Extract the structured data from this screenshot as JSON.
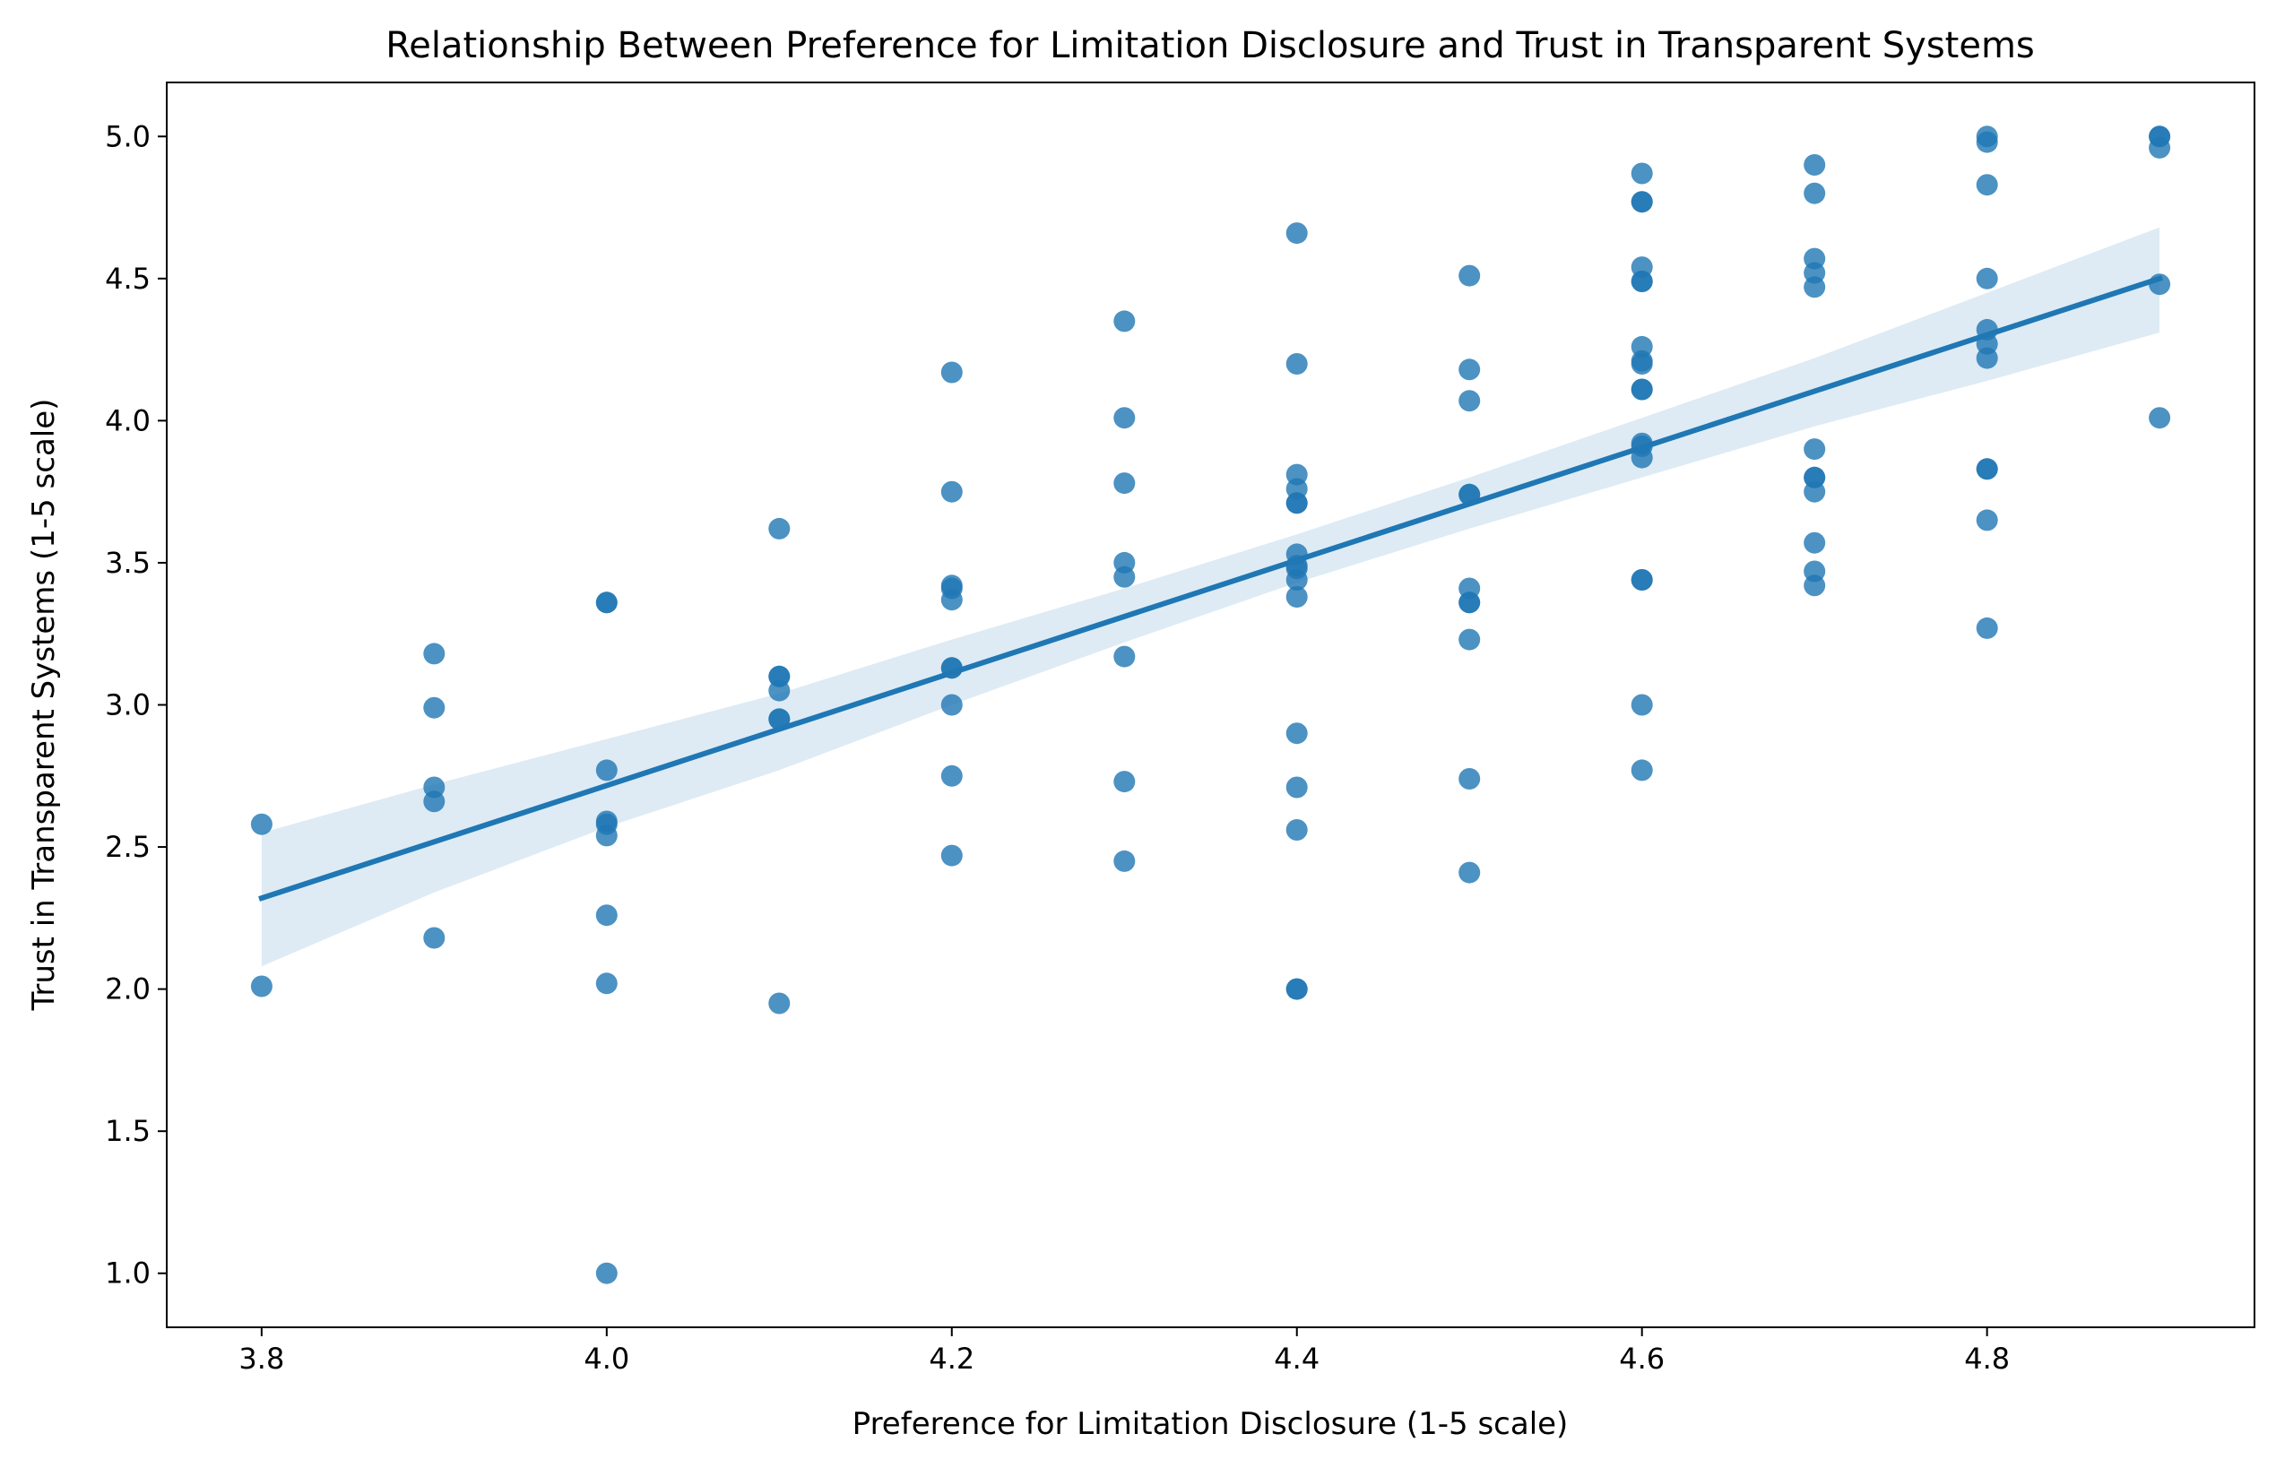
{
  "chart_data": {
    "type": "scatter",
    "title": "Relationship Between Preference for Limitation Disclosure and Trust in Transparent Systems",
    "xlabel": "Preference for Limitation Disclosure (1-5 scale)",
    "ylabel": "Trust in Transparent Systems (1-5 scale)",
    "xlim": [
      3.745,
      4.955
    ],
    "ylim": [
      0.81,
      5.19
    ],
    "x_ticks": [
      "3.8",
      "4.0",
      "4.2",
      "4.4",
      "4.6",
      "4.8"
    ],
    "y_ticks": [
      "1.0",
      "1.5",
      "2.0",
      "2.5",
      "3.0",
      "3.5",
      "4.0",
      "4.5",
      "5.0"
    ],
    "grid": false,
    "point_color": "#1f77b4",
    "points": [
      [
        3.8,
        2.58
      ],
      [
        3.8,
        2.01
      ],
      [
        3.9,
        3.18
      ],
      [
        3.9,
        2.99
      ],
      [
        3.9,
        2.71
      ],
      [
        3.9,
        2.66
      ],
      [
        3.9,
        2.18
      ],
      [
        4.0,
        3.36
      ],
      [
        4.0,
        3.36
      ],
      [
        4.0,
        2.77
      ],
      [
        4.0,
        2.59
      ],
      [
        4.0,
        2.58
      ],
      [
        4.0,
        2.54
      ],
      [
        4.0,
        2.26
      ],
      [
        4.0,
        2.02
      ],
      [
        4.0,
        1.0
      ],
      [
        4.1,
        3.62
      ],
      [
        4.1,
        3.1
      ],
      [
        4.1,
        3.1
      ],
      [
        4.1,
        3.05
      ],
      [
        4.1,
        2.95
      ],
      [
        4.1,
        2.95
      ],
      [
        4.1,
        1.95
      ],
      [
        4.2,
        4.17
      ],
      [
        4.2,
        3.75
      ],
      [
        4.2,
        3.42
      ],
      [
        4.2,
        3.41
      ],
      [
        4.2,
        3.37
      ],
      [
        4.2,
        3.13
      ],
      [
        4.2,
        3.13
      ],
      [
        4.2,
        3.0
      ],
      [
        4.2,
        2.75
      ],
      [
        4.2,
        2.47
      ],
      [
        4.3,
        4.35
      ],
      [
        4.3,
        4.01
      ],
      [
        4.3,
        3.78
      ],
      [
        4.3,
        3.5
      ],
      [
        4.3,
        3.45
      ],
      [
        4.3,
        3.17
      ],
      [
        4.3,
        2.73
      ],
      [
        4.3,
        2.45
      ],
      [
        4.4,
        4.66
      ],
      [
        4.4,
        4.2
      ],
      [
        4.4,
        3.81
      ],
      [
        4.4,
        3.76
      ],
      [
        4.4,
        3.71
      ],
      [
        4.4,
        3.71
      ],
      [
        4.4,
        3.53
      ],
      [
        4.4,
        3.49
      ],
      [
        4.4,
        3.48
      ],
      [
        4.4,
        3.44
      ],
      [
        4.4,
        3.38
      ],
      [
        4.4,
        2.9
      ],
      [
        4.4,
        2.71
      ],
      [
        4.4,
        2.56
      ],
      [
        4.4,
        2.0
      ],
      [
        4.4,
        2.0
      ],
      [
        4.5,
        4.51
      ],
      [
        4.5,
        4.18
      ],
      [
        4.5,
        4.07
      ],
      [
        4.5,
        3.74
      ],
      [
        4.5,
        3.74
      ],
      [
        4.5,
        3.41
      ],
      [
        4.5,
        3.36
      ],
      [
        4.5,
        3.36
      ],
      [
        4.5,
        3.23
      ],
      [
        4.5,
        2.74
      ],
      [
        4.5,
        2.41
      ],
      [
        4.6,
        4.87
      ],
      [
        4.6,
        4.77
      ],
      [
        4.6,
        4.77
      ],
      [
        4.6,
        4.54
      ],
      [
        4.6,
        4.49
      ],
      [
        4.6,
        4.49
      ],
      [
        4.6,
        4.26
      ],
      [
        4.6,
        4.21
      ],
      [
        4.6,
        4.2
      ],
      [
        4.6,
        4.11
      ],
      [
        4.6,
        4.11
      ],
      [
        4.6,
        3.92
      ],
      [
        4.6,
        3.91
      ],
      [
        4.6,
        3.87
      ],
      [
        4.6,
        3.44
      ],
      [
        4.6,
        3.44
      ],
      [
        4.6,
        3.0
      ],
      [
        4.6,
        2.77
      ],
      [
        4.7,
        4.9
      ],
      [
        4.7,
        4.8
      ],
      [
        4.7,
        4.57
      ],
      [
        4.7,
        4.52
      ],
      [
        4.7,
        4.47
      ],
      [
        4.7,
        3.9
      ],
      [
        4.7,
        3.8
      ],
      [
        4.7,
        3.8
      ],
      [
        4.7,
        3.75
      ],
      [
        4.7,
        3.57
      ],
      [
        4.7,
        3.47
      ],
      [
        4.7,
        3.42
      ],
      [
        4.8,
        5.0
      ],
      [
        4.8,
        4.98
      ],
      [
        4.8,
        4.83
      ],
      [
        4.8,
        4.5
      ],
      [
        4.8,
        4.32
      ],
      [
        4.8,
        4.27
      ],
      [
        4.8,
        4.22
      ],
      [
        4.8,
        3.83
      ],
      [
        4.8,
        3.83
      ],
      [
        4.8,
        3.65
      ],
      [
        4.8,
        3.27
      ],
      [
        4.9,
        5.0
      ],
      [
        4.9,
        5.0
      ],
      [
        4.9,
        4.96
      ],
      [
        4.9,
        4.48
      ],
      [
        4.9,
        4.01
      ]
    ],
    "regression": {
      "x": [
        3.8,
        4.9
      ],
      "y": [
        2.32,
        4.5
      ],
      "ci_x": [
        3.8,
        3.9,
        4.0,
        4.1,
        4.2,
        4.3,
        4.4,
        4.5,
        4.6,
        4.7,
        4.8,
        4.9
      ],
      "ci_lower": [
        2.08,
        2.34,
        2.57,
        2.77,
        3.0,
        3.22,
        3.43,
        3.62,
        3.8,
        3.98,
        4.14,
        4.31
      ],
      "ci_upper": [
        2.55,
        2.72,
        2.88,
        3.04,
        3.23,
        3.41,
        3.6,
        3.8,
        4.01,
        4.22,
        4.45,
        4.68
      ],
      "line_color": "#1f77b4",
      "band_color": "#1f77b4"
    }
  }
}
